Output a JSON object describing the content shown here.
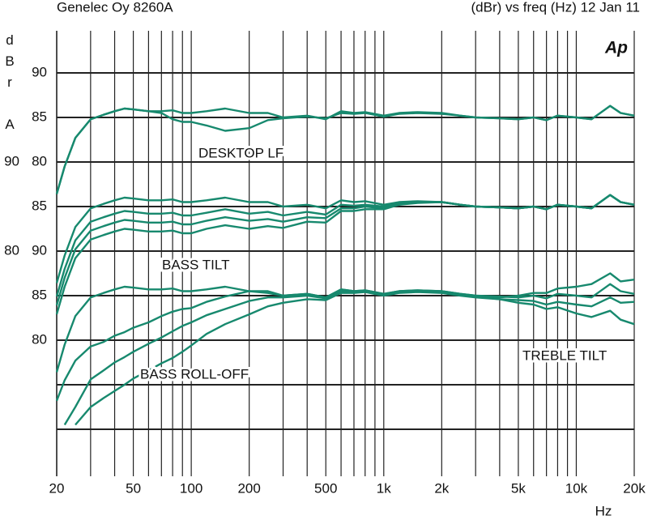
{
  "header": {
    "left": "Genelec Oy 8260A",
    "right": "(dBr) vs freq (Hz) 12 Jan 11",
    "logo": "Ap"
  },
  "chart_data": [
    {
      "type": "line",
      "title": "DESKTOP LF",
      "ylabel": "dBr A",
      "xlabel": "Hz",
      "xscale": "log",
      "xlim": [
        20,
        20000
      ],
      "xticks": [
        20,
        50,
        100,
        200,
        500,
        {
          "value": 1000,
          "label": "1k"
        },
        {
          "value": 2000,
          "label": "2k"
        },
        {
          "value": 5000,
          "label": "5k"
        },
        {
          "value": 10000,
          "label": "10k"
        },
        {
          "value": 20000,
          "label": "20k"
        }
      ],
      "xminor": [
        30,
        40,
        60,
        70,
        80,
        90,
        300,
        400,
        600,
        700,
        800,
        900,
        3000,
        4000,
        6000,
        7000,
        8000,
        9000
      ],
      "ylim": [
        45,
        95
      ],
      "yticks": [
        90,
        85,
        80
      ],
      "ygrid": [
        90,
        85,
        80,
        75,
        70,
        65,
        60,
        55,
        50
      ],
      "x": [
        20,
        22,
        25,
        30,
        35,
        40,
        45,
        50,
        60,
        70,
        80,
        90,
        100,
        120,
        150,
        200,
        250,
        300,
        400,
        500,
        600,
        700,
        800,
        1000,
        1200,
        1500,
        2000,
        2500,
        3000,
        4000,
        5000,
        6000,
        7000,
        8000,
        10000,
        12000,
        15000,
        17000,
        20000
      ],
      "series": [
        {
          "color": "#17896e",
          "values": [
            76.4,
            79.5,
            82.7,
            84.8,
            85.3,
            85.7,
            86,
            85.9,
            85.7,
            85.7,
            85.8,
            85.5,
            85.5,
            85.7,
            86,
            85.5,
            85.5,
            85,
            85.2,
            84.8,
            85.7,
            85.5,
            85.6,
            85.2,
            85.5,
            85.6,
            85.5,
            85.2,
            85,
            84.9,
            84.8,
            85,
            84.7,
            85.2,
            85,
            84.8,
            86.3,
            85.5,
            85.2
          ]
        },
        {
          "color": "#17896e",
          "values": [
            76.4,
            79.5,
            82.7,
            84.8,
            85.3,
            85.7,
            86,
            85.9,
            85.7,
            85.5,
            84.8,
            84.5,
            84.5,
            84.1,
            83.5,
            83.8,
            84.7,
            84.9,
            85.1,
            84.9,
            85.5,
            85.4,
            85.5,
            85.1,
            85.4,
            85.5,
            85.4,
            85.2,
            85,
            84.9,
            84.8,
            85,
            84.7,
            85.2,
            85,
            84.8,
            86.3,
            85.5,
            85.2
          ]
        }
      ]
    },
    {
      "type": "line",
      "title": "BASS TILT",
      "ylim": [
        55,
        105
      ],
      "yticks": [
        90,
        85,
        80
      ],
      "x": [
        20,
        22,
        25,
        30,
        35,
        40,
        45,
        50,
        60,
        70,
        80,
        90,
        100,
        120,
        150,
        200,
        250,
        300,
        400,
        500,
        600,
        700,
        800,
        1000,
        1200,
        1500,
        2000,
        2500,
        3000,
        4000,
        5000,
        6000,
        7000,
        8000,
        10000,
        12000,
        15000,
        17000,
        20000
      ],
      "series": [
        {
          "color": "#17896e",
          "values": [
            76.4,
            79.5,
            82.7,
            84.8,
            85.3,
            85.7,
            86,
            85.9,
            85.7,
            85.7,
            85.8,
            85.5,
            85.5,
            85.7,
            86,
            85.5,
            85.5,
            85,
            85.2,
            84.8,
            85.7,
            85.5,
            85.6,
            85.2,
            85.5,
            85.6,
            85.5,
            85.2,
            85,
            84.9,
            84.8,
            85,
            84.7,
            85.2,
            85,
            84.8,
            86.3,
            85.5,
            85.2
          ]
        },
        {
          "color": "#17896e",
          "values": [
            74.9,
            78,
            81.2,
            83.3,
            83.8,
            84.2,
            84.5,
            84.4,
            84.2,
            84.2,
            84.3,
            84,
            84,
            84.3,
            84.7,
            84.2,
            84.4,
            84,
            84.4,
            84.1,
            85.2,
            85.1,
            85.2,
            85,
            85.4,
            85.5,
            85.5,
            85.2,
            85,
            84.9,
            84.8,
            85,
            84.7,
            85.2,
            85,
            84.8,
            86.3,
            85.5,
            85.2
          ]
        },
        {
          "color": "#17896e",
          "values": [
            73.9,
            77,
            80.2,
            82.3,
            82.8,
            83.2,
            83.5,
            83.4,
            83.2,
            83.2,
            83.3,
            83,
            83,
            83.4,
            83.8,
            83.4,
            83.6,
            83.3,
            83.8,
            83.7,
            84.8,
            84.8,
            85,
            84.8,
            85.3,
            85.5,
            85.5,
            85.2,
            85,
            84.9,
            84.8,
            85,
            84.7,
            85.2,
            85,
            84.8,
            86.3,
            85.5,
            85.2
          ]
        },
        {
          "color": "#17896e",
          "values": [
            72.9,
            76,
            79.2,
            81.3,
            81.8,
            82.2,
            82.5,
            82.4,
            82.2,
            82.2,
            82.3,
            82,
            82,
            82.5,
            82.9,
            82.5,
            82.8,
            82.6,
            83.3,
            83.2,
            84.5,
            84.5,
            84.7,
            84.7,
            85.2,
            85.4,
            85.5,
            85.2,
            85,
            84.9,
            84.8,
            85,
            84.7,
            85.2,
            85,
            84.8,
            86.3,
            85.5,
            85.2
          ]
        }
      ]
    },
    {
      "type": "line",
      "annotations": [
        "BASS ROLL-OFF",
        "TREBLE TILT"
      ],
      "ylim": [
        65,
        115
      ],
      "yticks": [
        90,
        85,
        80
      ],
      "x": [
        20,
        22,
        25,
        30,
        35,
        40,
        45,
        50,
        60,
        70,
        80,
        90,
        100,
        120,
        150,
        200,
        250,
        300,
        400,
        500,
        600,
        700,
        800,
        1000,
        1200,
        1500,
        2000,
        2500,
        3000,
        4000,
        5000,
        6000,
        7000,
        8000,
        10000,
        12000,
        15000,
        17000,
        20000
      ],
      "series": [
        {
          "color": "#17896e",
          "values": [
            76.4,
            79.5,
            82.7,
            84.8,
            85.3,
            85.7,
            86,
            85.9,
            85.7,
            85.7,
            85.8,
            85.5,
            85.5,
            85.7,
            86,
            85.5,
            85.5,
            85,
            85.2,
            84.8,
            85.7,
            85.5,
            85.6,
            85.2,
            85.5,
            85.6,
            85.5,
            85.2,
            85,
            84.9,
            84.8,
            85,
            84.7,
            85.2,
            85,
            84.8,
            86.3,
            85.5,
            85.2
          ]
        },
        {
          "color": "#17896e",
          "values": [
            73.2,
            75.5,
            77.7,
            79.3,
            79.8,
            80.5,
            80.9,
            81.4,
            82,
            82.7,
            83.2,
            83.5,
            83.6,
            84.3,
            84.9,
            85.5,
            85.3,
            85,
            85.2,
            84.8,
            85.7,
            85.5,
            85.6,
            85.2,
            85.5,
            85.6,
            85.5,
            85.2,
            85,
            84.8,
            85,
            85.3,
            85.3,
            85.8,
            86,
            86.3,
            87.5,
            86.6,
            86.8
          ]
        },
        {
          "color": "#17896e",
          "values": [
            null,
            70.5,
            72.5,
            75.6,
            76.6,
            77.5,
            78.1,
            78.7,
            79.6,
            80.3,
            81,
            81.6,
            82,
            82.8,
            83.5,
            84.4,
            84.8,
            84.8,
            85,
            84.7,
            85.5,
            85.4,
            85.5,
            85.1,
            85.4,
            85.5,
            85.4,
            85.1,
            84.9,
            84.6,
            84.5,
            84.4,
            84,
            84.3,
            84,
            83.8,
            84.8,
            84.2,
            84.3
          ]
        },
        {
          "color": "#17896e",
          "values": [
            null,
            null,
            70.5,
            72.5,
            73.5,
            74.3,
            75,
            75.7,
            76.6,
            77.4,
            78,
            78.7,
            79.4,
            80.7,
            81.8,
            82.9,
            83.8,
            84.2,
            84.6,
            84.5,
            85.3,
            85.3,
            85.4,
            85,
            85.3,
            85.4,
            85.3,
            85,
            84.8,
            84.6,
            84.2,
            84,
            83.5,
            83.7,
            83,
            82.6,
            83.3,
            82.3,
            81.8
          ]
        }
      ]
    }
  ]
}
